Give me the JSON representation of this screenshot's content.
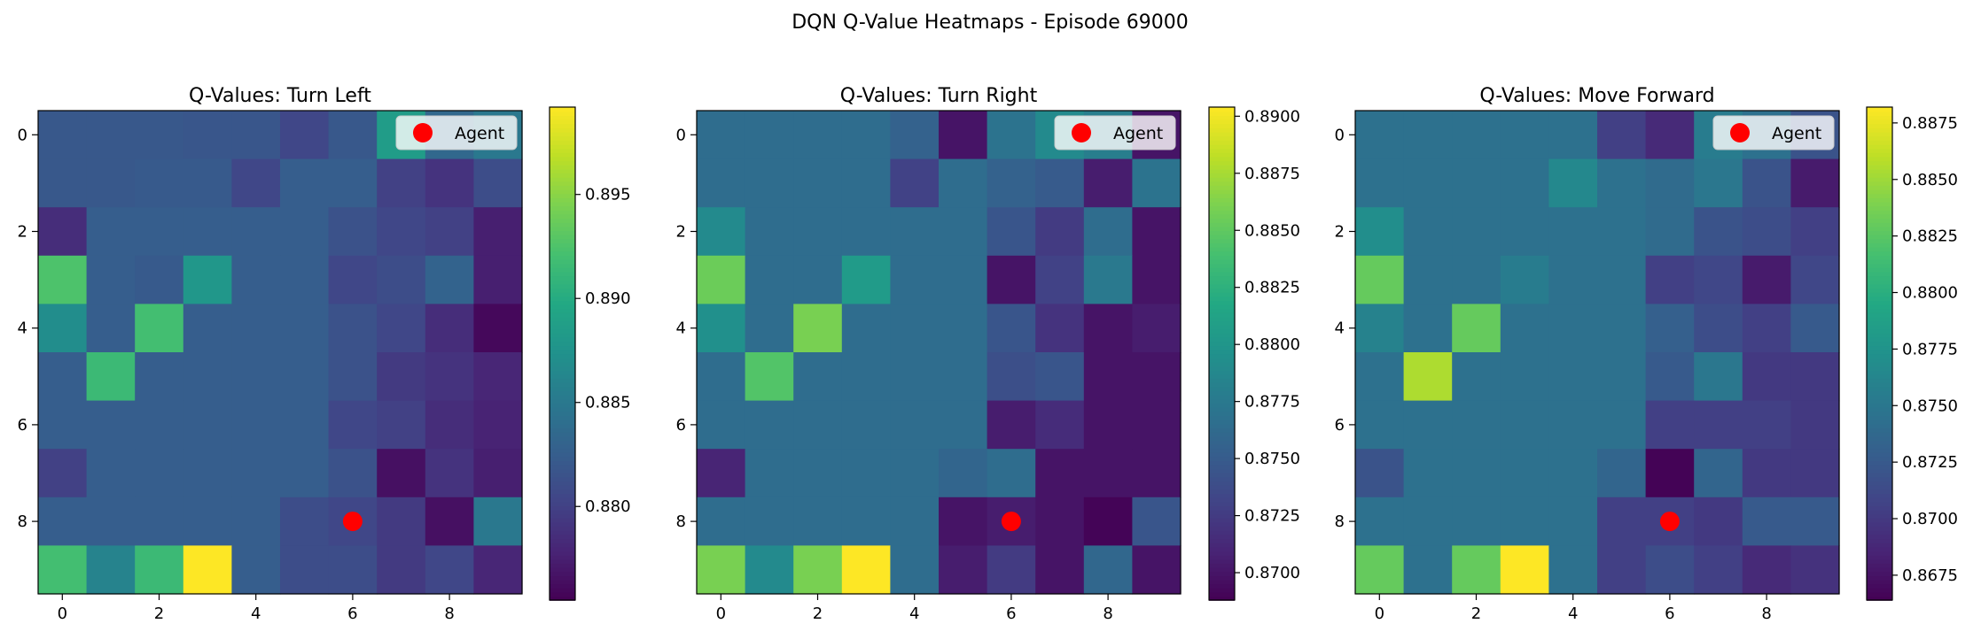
{
  "suptitle": "DQN Q-Value Heatmaps - Episode 69000",
  "chart_data": [
    {
      "type": "heatmap",
      "title": "Q-Values: Turn Left",
      "xlabel": "",
      "ylabel": "",
      "x_ticks": [
        0,
        2,
        4,
        6,
        8
      ],
      "y_ticks": [
        0,
        2,
        4,
        6,
        8
      ],
      "agent": {
        "row": 8,
        "col": 6,
        "label": "Agent"
      },
      "colorbar": {
        "min": 0.8755,
        "max": 0.8992,
        "ticks": [
          0.88,
          0.885,
          0.89,
          0.895
        ],
        "tick_decimals": 3
      },
      "values": [
        [
          0.882,
          0.882,
          0.882,
          0.8818,
          0.8818,
          0.8805,
          0.882,
          0.8885,
          0.8835,
          0.885
        ],
        [
          0.882,
          0.882,
          0.8822,
          0.8822,
          0.8805,
          0.8825,
          0.8825,
          0.88,
          0.879,
          0.881
        ],
        [
          0.8785,
          0.8825,
          0.8825,
          0.8825,
          0.8825,
          0.8825,
          0.8815,
          0.8805,
          0.88,
          0.8775
        ],
        [
          0.8925,
          0.8825,
          0.8822,
          0.888,
          0.8825,
          0.8825,
          0.8805,
          0.881,
          0.883,
          0.8775
        ],
        [
          0.887,
          0.8825,
          0.892,
          0.8825,
          0.8825,
          0.8825,
          0.8815,
          0.8805,
          0.8785,
          0.876
        ],
        [
          0.8825,
          0.8915,
          0.8825,
          0.8825,
          0.8825,
          0.8825,
          0.8815,
          0.8795,
          0.879,
          0.878
        ],
        [
          0.8825,
          0.8825,
          0.8825,
          0.8825,
          0.8825,
          0.8825,
          0.8805,
          0.88,
          0.8785,
          0.8778
        ],
        [
          0.88,
          0.8825,
          0.8825,
          0.8825,
          0.8825,
          0.8825,
          0.8815,
          0.8765,
          0.879,
          0.8775
        ],
        [
          0.8825,
          0.8825,
          0.8825,
          0.8825,
          0.8825,
          0.881,
          0.8805,
          0.8795,
          0.8765,
          0.885
        ],
        [
          0.892,
          0.886,
          0.8915,
          0.8992,
          0.8825,
          0.881,
          0.881,
          0.8795,
          0.8805,
          0.878
        ]
      ]
    },
    {
      "type": "heatmap",
      "title": "Q-Values: Turn Right",
      "xlabel": "",
      "ylabel": "",
      "x_ticks": [
        0,
        2,
        4,
        6,
        8
      ],
      "y_ticks": [
        0,
        2,
        4,
        6,
        8
      ],
      "agent": {
        "row": 8,
        "col": 6,
        "label": "Agent"
      },
      "colorbar": {
        "min": 0.8688,
        "max": 0.8904,
        "ticks": [
          0.87,
          0.8725,
          0.875,
          0.8775,
          0.88,
          0.8825,
          0.885,
          0.8875,
          0.89
        ],
        "tick_decimals": 4
      },
      "values": [
        [
          0.8765,
          0.8765,
          0.8765,
          0.8765,
          0.8755,
          0.87,
          0.877,
          0.879,
          0.878,
          0.87
        ],
        [
          0.8765,
          0.8765,
          0.8765,
          0.8765,
          0.873,
          0.8765,
          0.8755,
          0.875,
          0.8705,
          0.877
        ],
        [
          0.879,
          0.8765,
          0.8765,
          0.8765,
          0.8765,
          0.8765,
          0.8745,
          0.8725,
          0.8765,
          0.87
        ],
        [
          0.8855,
          0.8765,
          0.8765,
          0.8805,
          0.8765,
          0.8765,
          0.87,
          0.873,
          0.8775,
          0.87
        ],
        [
          0.8795,
          0.8765,
          0.886,
          0.8765,
          0.8765,
          0.8765,
          0.8745,
          0.872,
          0.87,
          0.8705
        ],
        [
          0.8765,
          0.8845,
          0.8765,
          0.8765,
          0.8765,
          0.8765,
          0.874,
          0.8745,
          0.87,
          0.87
        ],
        [
          0.8765,
          0.8765,
          0.8765,
          0.8765,
          0.8765,
          0.8765,
          0.8705,
          0.8715,
          0.87,
          0.87
        ],
        [
          0.871,
          0.8765,
          0.8765,
          0.8765,
          0.8765,
          0.8758,
          0.8765,
          0.87,
          0.87,
          0.87
        ],
        [
          0.8765,
          0.8765,
          0.8765,
          0.8765,
          0.8765,
          0.87,
          0.8705,
          0.87,
          0.869,
          0.8745
        ],
        [
          0.886,
          0.879,
          0.886,
          0.8904,
          0.8765,
          0.8705,
          0.8725,
          0.87,
          0.876,
          0.87
        ]
      ]
    },
    {
      "type": "heatmap",
      "title": "Q-Values: Move Forward",
      "xlabel": "",
      "ylabel": "",
      "x_ticks": [
        0,
        2,
        4,
        6,
        8
      ],
      "y_ticks": [
        0,
        2,
        4,
        6,
        8
      ],
      "agent": {
        "row": 8,
        "col": 6,
        "label": "Agent"
      },
      "colorbar": {
        "min": 0.8664,
        "max": 0.8882,
        "ticks": [
          0.8675,
          0.87,
          0.8725,
          0.875,
          0.8775,
          0.88,
          0.8825,
          0.885,
          0.8875
        ],
        "tick_decimals": 4
      },
      "values": [
        [
          0.8745,
          0.8745,
          0.8745,
          0.8745,
          0.8745,
          0.8705,
          0.869,
          0.8755,
          0.8745,
          0.872
        ],
        [
          0.8745,
          0.8745,
          0.8745,
          0.8745,
          0.8765,
          0.8745,
          0.874,
          0.875,
          0.872,
          0.868
        ],
        [
          0.877,
          0.8745,
          0.8745,
          0.8745,
          0.8745,
          0.8745,
          0.874,
          0.872,
          0.8715,
          0.8705
        ],
        [
          0.883,
          0.8745,
          0.8745,
          0.8755,
          0.8745,
          0.8745,
          0.8705,
          0.871,
          0.868,
          0.871
        ],
        [
          0.876,
          0.8745,
          0.883,
          0.8745,
          0.8745,
          0.8745,
          0.873,
          0.8715,
          0.8705,
          0.8725
        ],
        [
          0.8745,
          0.8855,
          0.8745,
          0.8745,
          0.8745,
          0.8745,
          0.8725,
          0.875,
          0.87,
          0.87
        ],
        [
          0.8745,
          0.8745,
          0.8745,
          0.8745,
          0.8745,
          0.8745,
          0.8705,
          0.8705,
          0.8705,
          0.87
        ],
        [
          0.872,
          0.8745,
          0.8745,
          0.8745,
          0.8745,
          0.8735,
          0.8665,
          0.8735,
          0.87,
          0.87
        ],
        [
          0.8745,
          0.8745,
          0.8745,
          0.8745,
          0.8745,
          0.8705,
          0.8705,
          0.87,
          0.8725,
          0.8725
        ],
        [
          0.883,
          0.8745,
          0.883,
          0.8882,
          0.8745,
          0.8705,
          0.8715,
          0.8705,
          0.869,
          0.8695
        ]
      ]
    }
  ],
  "colors": {
    "agent_marker": "#ff0000",
    "colormap": "viridis"
  }
}
